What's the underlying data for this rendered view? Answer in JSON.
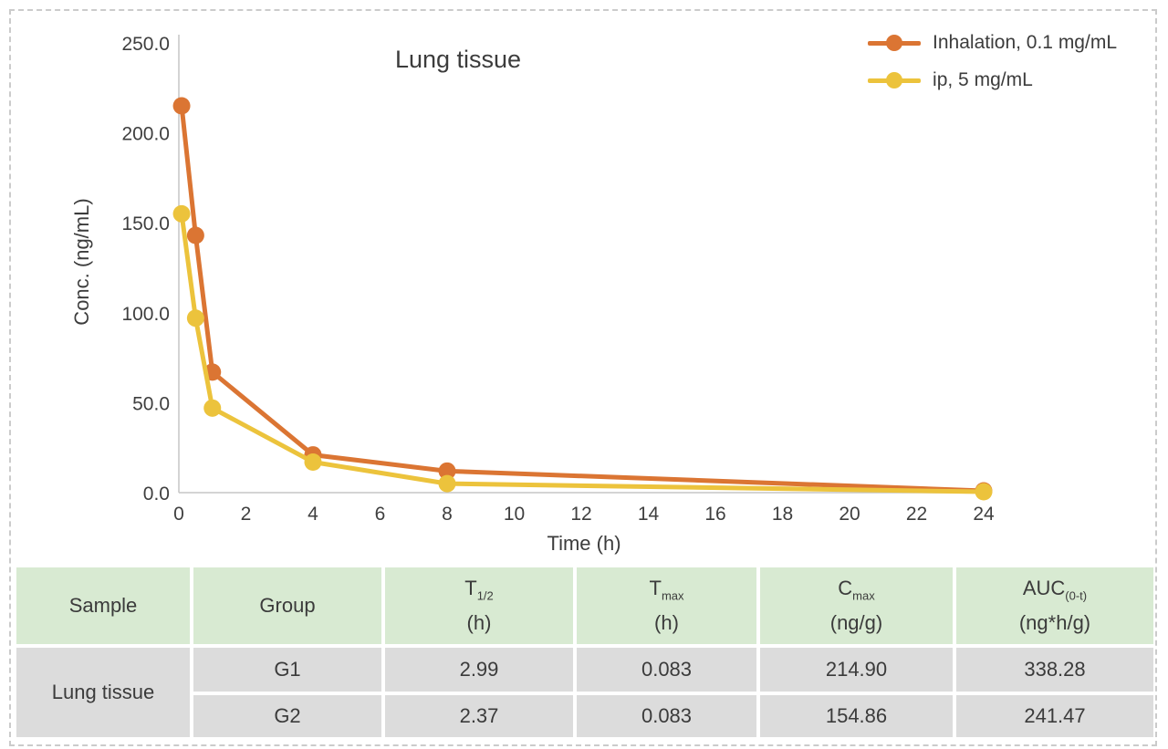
{
  "page": {
    "frame_border_color": "#cbcbcb",
    "background": "#ffffff"
  },
  "chart_data": {
    "type": "line",
    "title": "Lung tissue",
    "xlabel": "Time (h)",
    "ylabel": "Conc. (ng/mL)",
    "xlim": [
      0,
      24
    ],
    "ylim": [
      0,
      250
    ],
    "grid": false,
    "legend_position": "top-right",
    "axis_color": "#c6c6c6",
    "tick_color": "#3f3f3f",
    "xticks": [
      {
        "v": 0,
        "label": "0"
      },
      {
        "v": 2,
        "label": "2"
      },
      {
        "v": 4,
        "label": "4"
      },
      {
        "v": 6,
        "label": "6"
      },
      {
        "v": 8,
        "label": "8"
      },
      {
        "v": 10,
        "label": "10"
      },
      {
        "v": 12,
        "label": "12"
      },
      {
        "v": 14,
        "label": "14"
      },
      {
        "v": 16,
        "label": "16"
      },
      {
        "v": 18,
        "label": "18"
      },
      {
        "v": 20,
        "label": "20"
      },
      {
        "v": 22,
        "label": "22"
      },
      {
        "v": 24,
        "label": "24"
      }
    ],
    "yticks": [
      {
        "v": 0,
        "label": "0.0"
      },
      {
        "v": 50,
        "label": "50.0"
      },
      {
        "v": 100,
        "label": "100.0"
      },
      {
        "v": 150,
        "label": "150.0"
      },
      {
        "v": 200,
        "label": "200.0"
      },
      {
        "v": 250,
        "label": "250.0"
      }
    ],
    "series": [
      {
        "name": "Inhalation, 0.1 mg/mL",
        "color": "#db7533",
        "x": [
          0.083,
          0.5,
          1,
          4,
          8,
          24
        ],
        "y": [
          215,
          143,
          67,
          21,
          12,
          1
        ]
      },
      {
        "name": "ip, 5 mg/mL",
        "color": "#ecc33c",
        "x": [
          0.083,
          0.5,
          1,
          4,
          8,
          24
        ],
        "y": [
          155,
          97,
          47,
          17,
          5,
          0.5
        ]
      }
    ]
  },
  "table": {
    "colors": {
      "header_bg": "#d8ead2",
      "body_bg": "#dcdcdc"
    },
    "headers": [
      {
        "main": "Sample",
        "sub": "",
        "unit": ""
      },
      {
        "main": "Group",
        "sub": "",
        "unit": ""
      },
      {
        "main": "T",
        "sub": "1/2",
        "unit": "(h)"
      },
      {
        "main": "T",
        "sub": "max",
        "unit": "(h)"
      },
      {
        "main": "C",
        "sub": "max",
        "unit": "(ng/g)"
      },
      {
        "main": "AUC",
        "sub": "(0-t)",
        "unit": "(ng*h/g)"
      }
    ],
    "sample": "Lung tissue",
    "rows": [
      {
        "group": "G1",
        "t12": "2.99",
        "tmax": "0.083",
        "cmax": "214.90",
        "auc": "338.28"
      },
      {
        "group": "G2",
        "t12": "2.37",
        "tmax": "0.083",
        "cmax": "154.86",
        "auc": "241.47"
      }
    ]
  }
}
